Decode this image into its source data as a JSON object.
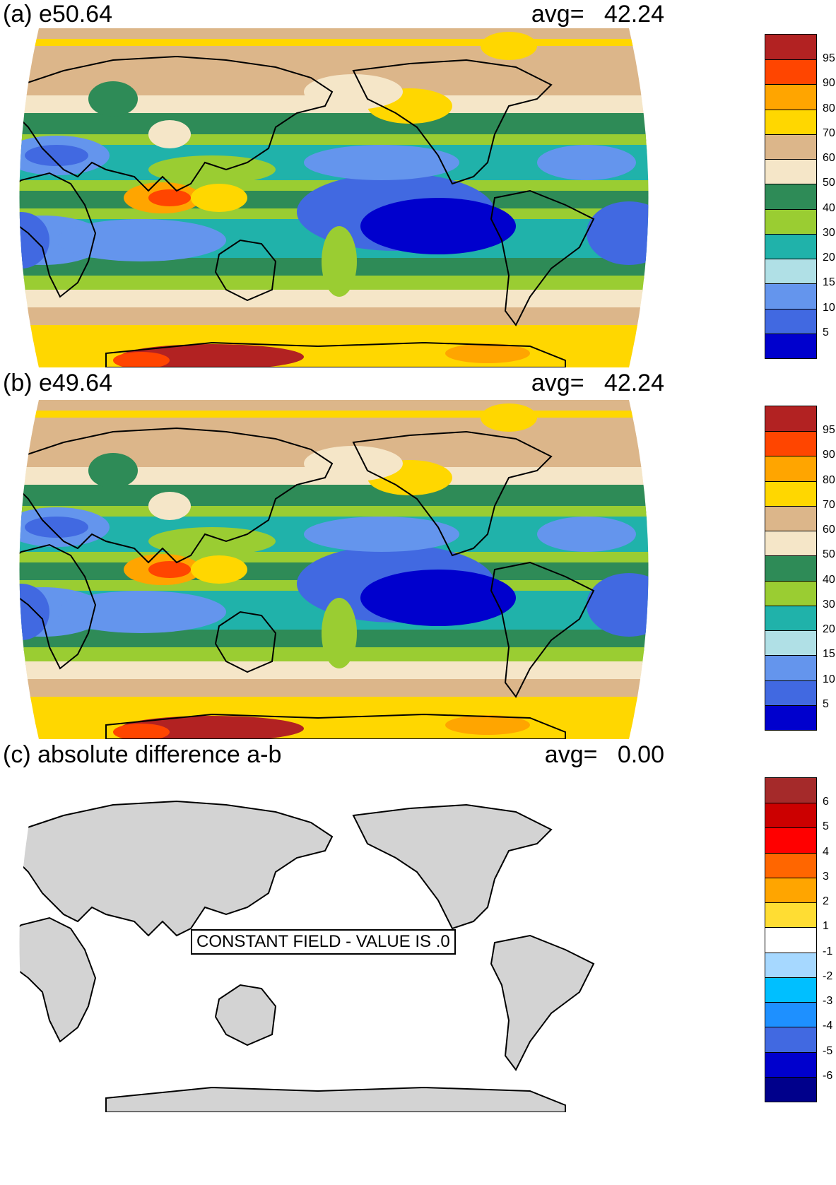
{
  "panels": [
    {
      "id": "a",
      "title": "(a) e50.64",
      "avg_label": "avg=",
      "avg_value": "42.24",
      "colorbar": {
        "labels": [
          "95",
          "90",
          "80",
          "70",
          "60",
          "50",
          "40",
          "30",
          "20",
          "15",
          "10",
          "5"
        ],
        "colors": [
          "#b22222",
          "#ff4500",
          "#ffa500",
          "#ffd700",
          "#dcb68a",
          "#f5e6c8",
          "#2e8b57",
          "#9acd32",
          "#20b2aa",
          "#b0e0e6",
          "#6495ed",
          "#4169e1",
          "#0000cd"
        ]
      }
    },
    {
      "id": "b",
      "title": "(b) e49.64",
      "avg_label": "avg=",
      "avg_value": "42.24",
      "colorbar": {
        "labels": [
          "95",
          "90",
          "80",
          "70",
          "60",
          "50",
          "40",
          "30",
          "20",
          "15",
          "10",
          "5"
        ],
        "colors": [
          "#b22222",
          "#ff4500",
          "#ffa500",
          "#ffd700",
          "#dcb68a",
          "#f5e6c8",
          "#2e8b57",
          "#9acd32",
          "#20b2aa",
          "#b0e0e6",
          "#6495ed",
          "#4169e1",
          "#0000cd"
        ]
      }
    },
    {
      "id": "c",
      "title": "(c) absolute difference a-b",
      "avg_label": "avg=",
      "avg_value": "0.00",
      "constant_field_label": "CONSTANT FIELD - VALUE IS .0",
      "colorbar": {
        "labels": [
          "6",
          "5",
          "4",
          "3",
          "2",
          "1",
          "-1",
          "-2",
          "-3",
          "-4",
          "-5",
          "-6"
        ],
        "colors": [
          "#a52a2a",
          "#cc0000",
          "#ff0000",
          "#ff6600",
          "#ffa500",
          "#ffdd33",
          "#ffffff",
          "#a6d8ff",
          "#00bfff",
          "#1e90ff",
          "#4169e1",
          "#0000cd",
          "#00008b"
        ]
      }
    }
  ],
  "colors": {
    "land_gray": "#d3d3d3",
    "coast": "#000000",
    "ocean_blank": "#ffffff"
  }
}
